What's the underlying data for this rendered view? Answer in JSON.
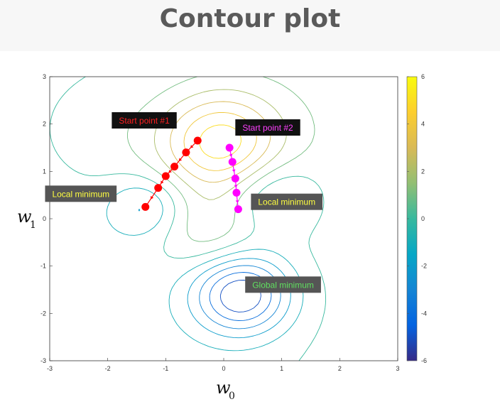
{
  "title": "Contour plot",
  "chart_data": {
    "type": "contour",
    "xlabel": "w",
    "xlabel_sub": "0",
    "ylabel": "w",
    "ylabel_sub": "1",
    "xlim": [
      -3,
      3
    ],
    "ylim": [
      -3,
      3
    ],
    "xticks": [
      "-3",
      "-2",
      "-1",
      "0",
      "1",
      "2",
      "3"
    ],
    "yticks": [
      "3",
      "2",
      "1",
      "0",
      "-1",
      "-2",
      "-3"
    ],
    "colorbar": {
      "range": [
        -6,
        6
      ],
      "ticks": [
        "6",
        "4",
        "2",
        "0",
        "-2",
        "-4",
        "-6"
      ],
      "colormap": "parula",
      "colors": [
        "#352a87",
        "#0363e1",
        "#1485d4",
        "#06a7c6",
        "#38b99e",
        "#92bf73",
        "#d9ba56",
        "#fcce2e",
        "#f9fb0e"
      ]
    },
    "paths": [
      {
        "name": "Start point #1",
        "color": "#ff0000",
        "points": [
          [
            -0.45,
            1.65
          ],
          [
            -0.65,
            1.4
          ],
          [
            -0.85,
            1.1
          ],
          [
            -1.0,
            0.9
          ],
          [
            -1.13,
            0.65
          ],
          [
            -1.35,
            0.25
          ]
        ]
      },
      {
        "name": "Start point #2",
        "color": "#ff00ff",
        "points": [
          [
            0.1,
            1.5
          ],
          [
            0.15,
            1.2
          ],
          [
            0.2,
            0.85
          ],
          [
            0.22,
            0.55
          ],
          [
            0.25,
            0.2
          ]
        ]
      }
    ],
    "annotations": [
      {
        "text": "Start point #1",
        "color": "#ff2020",
        "x": -1.93,
        "y": 2.25
      },
      {
        "text": "Start point #2",
        "color": "#ff40ff",
        "x": 0.2,
        "y": 2.1
      },
      {
        "text": "Local minimum",
        "color": "#ffff40",
        "x": -3.08,
        "y": 0.7
      },
      {
        "text": "Local minimum",
        "color": "#ffff40",
        "x": 0.47,
        "y": 0.53
      },
      {
        "text": "Global minimum",
        "color": "#60e060",
        "x": 0.37,
        "y": -1.22
      }
    ]
  }
}
